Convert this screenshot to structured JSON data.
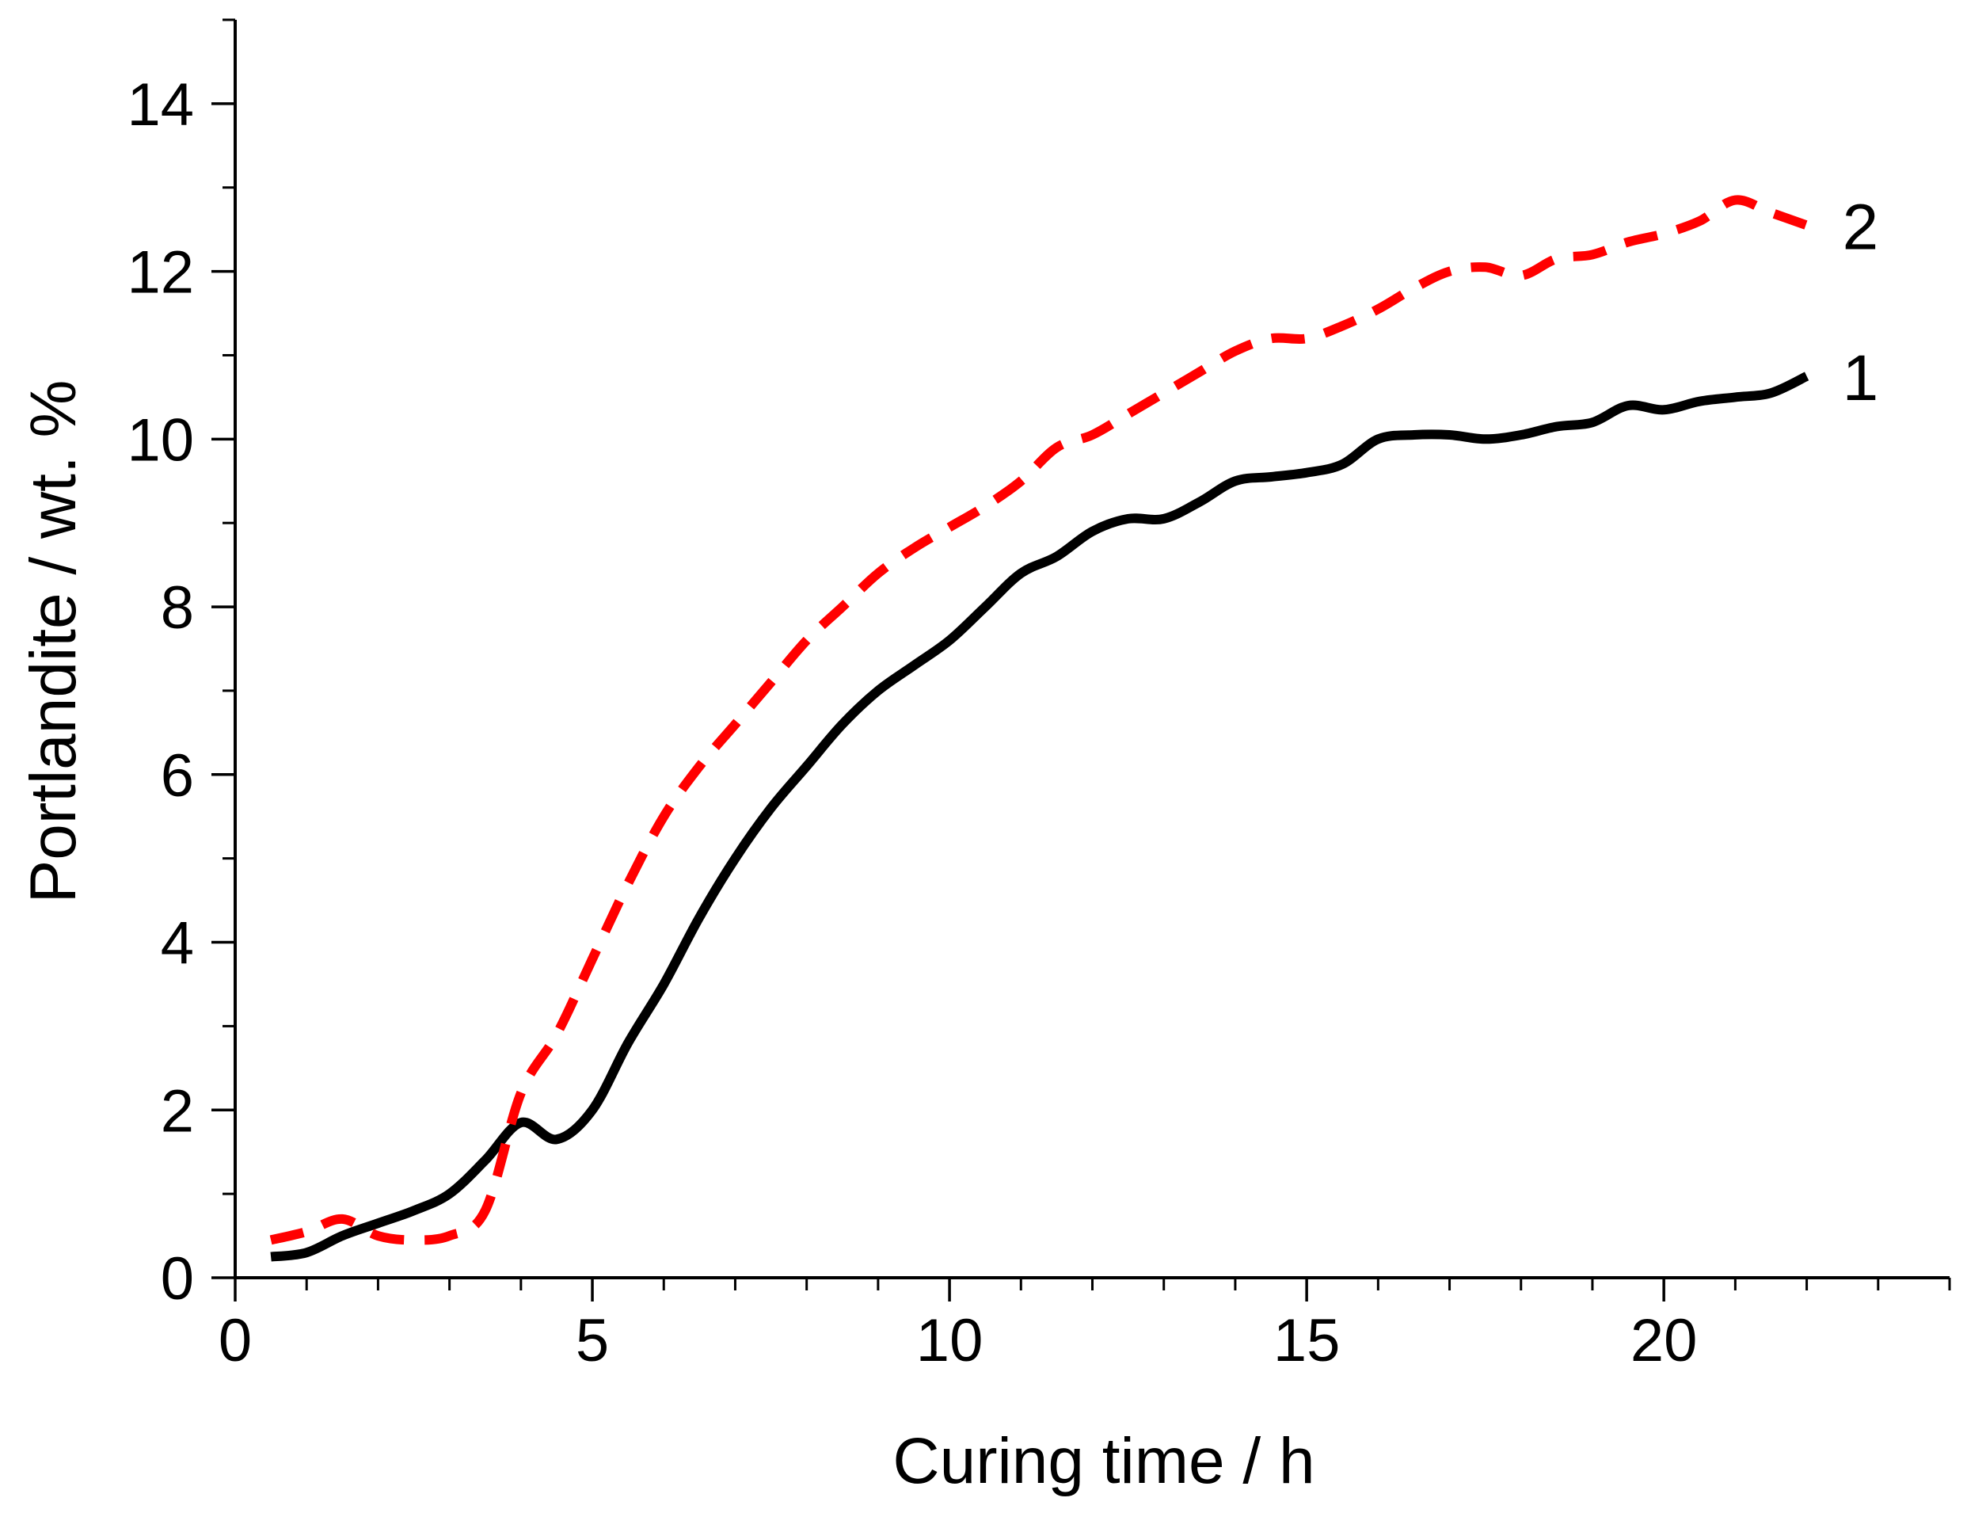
{
  "chart_data": {
    "type": "line",
    "xlabel": "Curing time / h",
    "ylabel": "Portlandite / wt. %",
    "xlim": [
      0,
      24
    ],
    "ylim": [
      0,
      15
    ],
    "x_ticks": [
      0,
      5,
      10,
      15,
      20
    ],
    "x_tick_labels": [
      "0",
      "5",
      "10",
      "15",
      "20"
    ],
    "x_minor_step": 1,
    "y_ticks": [
      0,
      2,
      4,
      6,
      8,
      10,
      12,
      14
    ],
    "y_tick_labels": [
      "0",
      "2",
      "4",
      "6",
      "8",
      "10",
      "12",
      "14"
    ],
    "y_minor_step": 1,
    "grid": false,
    "series": [
      {
        "name": "1",
        "label": "1",
        "color": "#000000",
        "style": "solid",
        "x": [
          0.5,
          1.0,
          1.5,
          2.0,
          2.5,
          3.0,
          3.5,
          4.0,
          4.5,
          5.0,
          5.5,
          6.0,
          6.5,
          7.0,
          7.5,
          8.0,
          8.5,
          9.0,
          9.5,
          10.0,
          10.5,
          11.0,
          11.5,
          12.0,
          12.5,
          13.0,
          13.5,
          14.0,
          14.5,
          15.0,
          15.5,
          16.0,
          16.5,
          17.0,
          17.5,
          18.0,
          18.5,
          19.0,
          19.5,
          20.0,
          20.5,
          21.0,
          21.5,
          22.0
        ],
        "y": [
          0.25,
          0.3,
          0.5,
          0.65,
          0.8,
          1.0,
          1.4,
          1.85,
          1.65,
          2.0,
          2.8,
          3.5,
          4.3,
          5.0,
          5.6,
          6.1,
          6.6,
          7.0,
          7.3,
          7.6,
          8.0,
          8.4,
          8.6,
          8.9,
          9.05,
          9.05,
          9.25,
          9.5,
          9.55,
          9.6,
          9.7,
          10.0,
          10.05,
          10.05,
          10.0,
          10.05,
          10.15,
          10.2,
          10.4,
          10.35,
          10.45,
          10.5,
          10.55,
          10.75
        ]
      },
      {
        "name": "2",
        "label": "2",
        "color": "#ff0000",
        "style": "dashed",
        "x": [
          0.5,
          1.0,
          1.5,
          2.0,
          2.5,
          3.0,
          3.5,
          4.0,
          4.5,
          5.0,
          5.5,
          6.0,
          6.5,
          7.0,
          7.5,
          8.0,
          8.5,
          9.0,
          9.5,
          10.0,
          10.5,
          11.0,
          11.5,
          12.0,
          12.5,
          13.0,
          13.5,
          14.0,
          14.5,
          15.0,
          15.5,
          16.0,
          16.5,
          17.0,
          17.5,
          18.0,
          18.5,
          19.0,
          19.5,
          20.0,
          20.5,
          21.0,
          21.5,
          22.0
        ],
        "y": [
          0.45,
          0.55,
          0.7,
          0.5,
          0.45,
          0.5,
          0.8,
          2.2,
          2.9,
          3.8,
          4.7,
          5.5,
          6.1,
          6.6,
          7.1,
          7.6,
          8.0,
          8.4,
          8.7,
          8.95,
          9.2,
          9.5,
          9.9,
          10.05,
          10.3,
          10.55,
          10.8,
          11.05,
          11.2,
          11.2,
          11.35,
          11.55,
          11.8,
          12.0,
          12.05,
          11.95,
          12.15,
          12.2,
          12.35,
          12.45,
          12.6,
          12.85,
          12.7,
          12.55
        ]
      }
    ]
  }
}
